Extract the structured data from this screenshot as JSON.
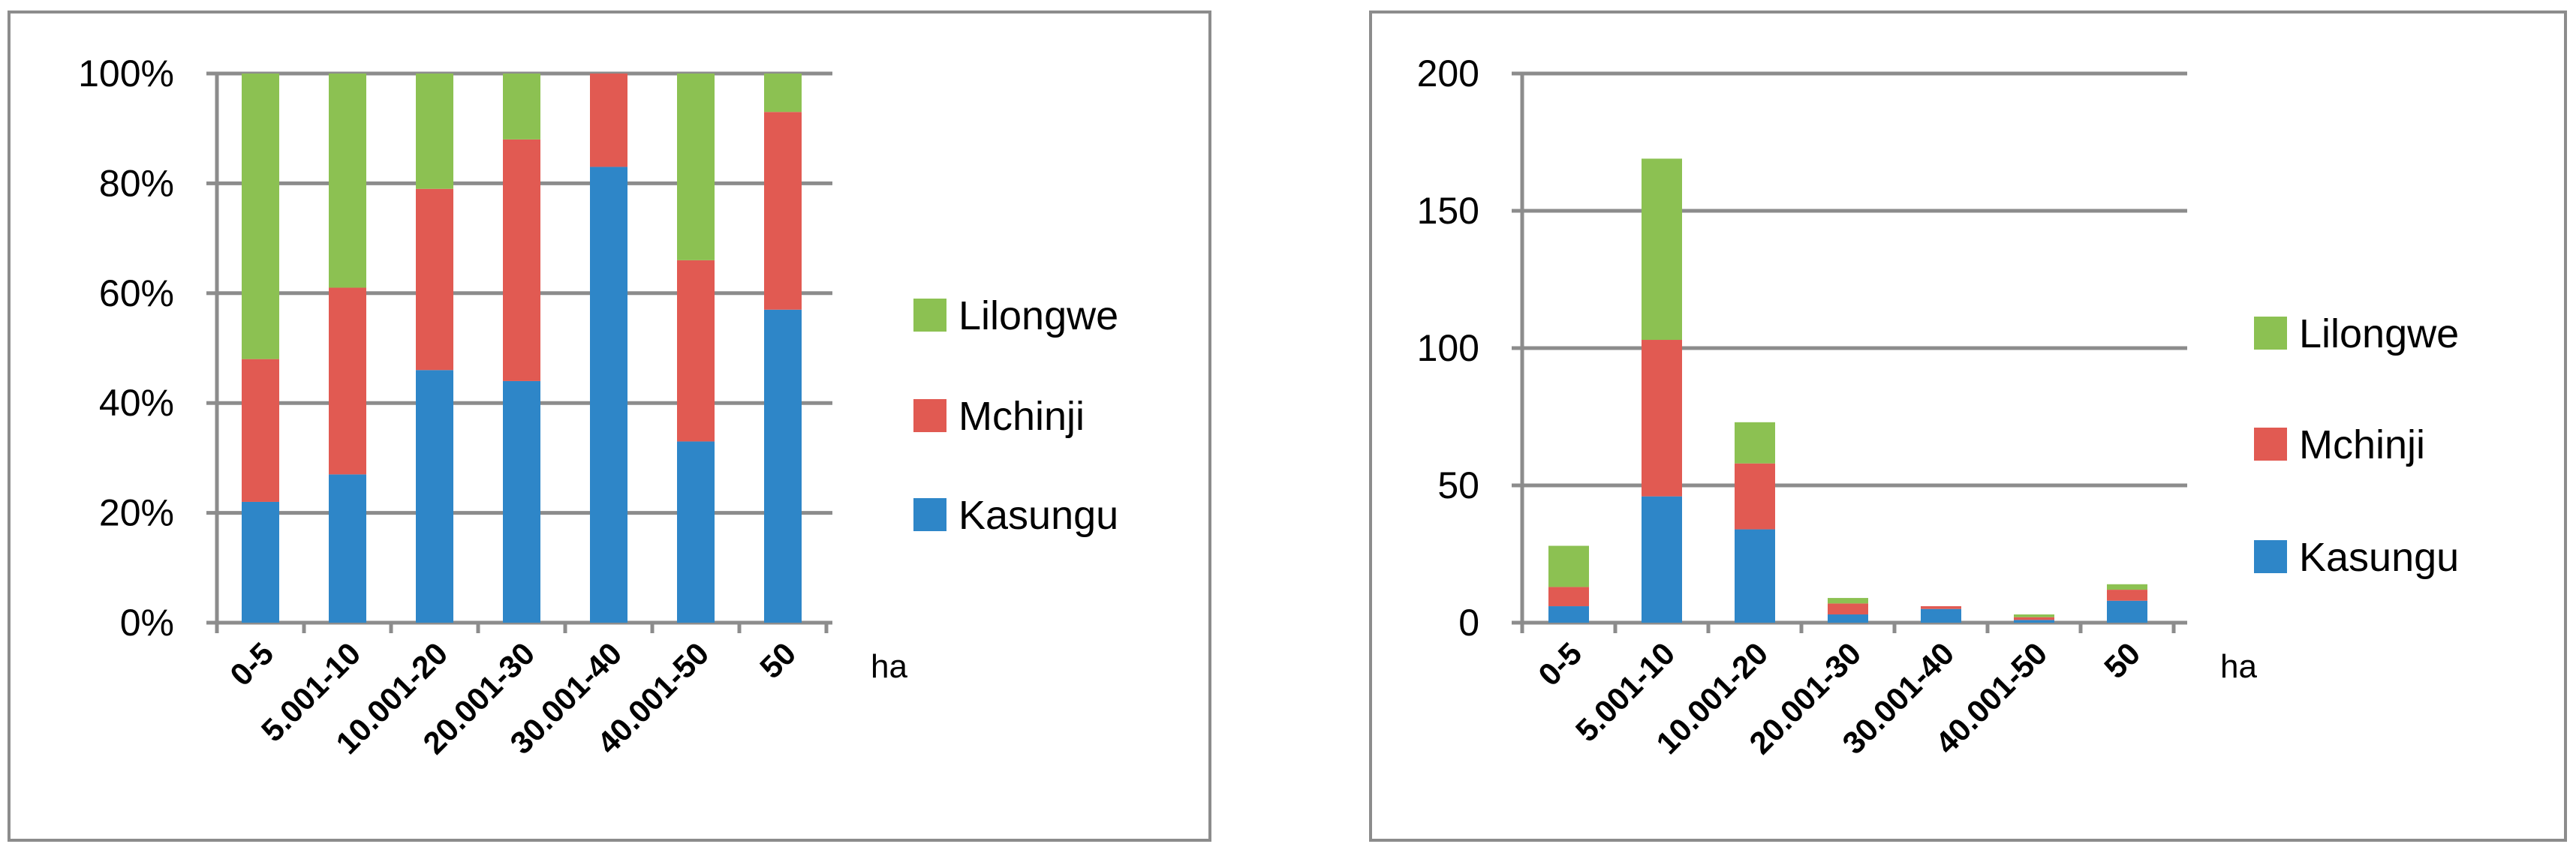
{
  "chart_data": [
    {
      "type": "bar",
      "stacked": true,
      "percent_stacked": true,
      "categories": [
        "0-5",
        "5.001-10",
        "10.001-20",
        "20.001-30",
        "30.001-40",
        "40.001-50",
        "50"
      ],
      "xlabel": "ha",
      "ylabel": "",
      "ylim": [
        0,
        100
      ],
      "ytick_step": 20,
      "ytick_suffix": "%",
      "grid": true,
      "legend_position": "right",
      "series": [
        {
          "name": "Kasungu",
          "color": "#2e86c8",
          "values": [
            22,
            27,
            46,
            44,
            83,
            33,
            57
          ]
        },
        {
          "name": "Mchinji",
          "color": "#e15a52",
          "values": [
            26,
            34,
            33,
            44,
            17,
            33,
            36
          ]
        },
        {
          "name": "Lilongwe",
          "color": "#8cc152",
          "values": [
            52,
            39,
            21,
            12,
            0,
            34,
            7
          ]
        }
      ]
    },
    {
      "type": "bar",
      "stacked": true,
      "percent_stacked": false,
      "categories": [
        "0-5",
        "5.001-10",
        "10.001-20",
        "20.001-30",
        "30.001-40",
        "40.001-50",
        "50"
      ],
      "xlabel": "ha",
      "ylabel": "",
      "ylim": [
        0,
        200
      ],
      "ytick_step": 50,
      "ytick_suffix": "",
      "grid": true,
      "legend_position": "right",
      "series": [
        {
          "name": "Kasungu",
          "color": "#2e86c8",
          "values": [
            6,
            46,
            34,
            3,
            5,
            1,
            8
          ]
        },
        {
          "name": "Mchinji",
          "color": "#e15a52",
          "values": [
            7,
            57,
            24,
            4,
            1,
            1,
            4
          ]
        },
        {
          "name": "Lilongwe",
          "color": "#8cc152",
          "values": [
            15,
            66,
            15,
            2,
            0,
            1,
            2
          ]
        }
      ]
    }
  ]
}
